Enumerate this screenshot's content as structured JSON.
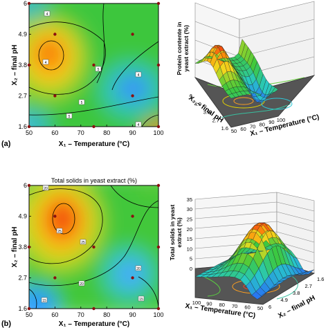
{
  "figure": {
    "panel_a": "(a)",
    "panel_b": "(b)"
  },
  "colors": {
    "low": "#1f78ff",
    "mid": "#22c030",
    "high": "#ff8a00",
    "peak": "#e81e10",
    "design_point": "#8b1010"
  },
  "chart_data": [
    {
      "type": "heatmap",
      "title": "",
      "xlabel": "X₁ – Temperature (°C)",
      "ylabel": "X₂ – final pH",
      "x_ticks": [
        "50",
        "60",
        "70",
        "80",
        "90",
        "100"
      ],
      "y_ticks": [
        "1.6",
        "2.7",
        "3.8",
        "4.9",
        "6"
      ],
      "xlim": [
        50,
        100
      ],
      "ylim": [
        1.6,
        6
      ],
      "grid": false,
      "contour_labels": [
        "4",
        "4",
        "5",
        "5",
        "5",
        "4",
        "4"
      ],
      "maximum": {
        "x": 59,
        "y": 4.3
      },
      "minimum": {
        "x": 91,
        "y": 2.9
      },
      "design_points": [
        [
          50,
          6
        ],
        [
          100,
          6
        ],
        [
          60,
          4.9
        ],
        [
          90,
          4.9
        ],
        [
          50,
          3.8
        ],
        [
          75,
          3.8
        ],
        [
          100,
          3.8
        ],
        [
          60,
          2.7
        ],
        [
          90,
          2.7
        ],
        [
          50,
          1.6
        ],
        [
          75,
          1.6
        ],
        [
          100,
          1.6
        ]
      ]
    },
    {
      "type": "surface",
      "title": "",
      "xlabel": "X₁ – Temperature (°C)",
      "ylabel": "X₂ – final pH",
      "zlabel": "Protein contente in yeast extract (%)",
      "x_ticks": [
        "50",
        "60",
        "70",
        "80",
        "90",
        "100"
      ],
      "y_ticks": [
        "1.6",
        "2.7",
        "3.8",
        "4.9",
        "6"
      ]
    },
    {
      "type": "heatmap",
      "title": "Total solids in yeast extract (%)",
      "xlabel": "X₁ – Temperature (°C)",
      "ylabel": "X₂ – final pH",
      "x_ticks": [
        "50",
        "60",
        "70",
        "80",
        "90",
        "100"
      ],
      "y_ticks": [
        "1.6",
        "2.7",
        "3.8",
        "4.9",
        "6"
      ],
      "xlim": [
        50,
        100
      ],
      "ylim": [
        1.6,
        6
      ],
      "grid": false,
      "contour_labels": [
        "20",
        "25",
        "25",
        "20",
        "20",
        "15",
        "15"
      ],
      "maximum": {
        "x": 60,
        "y": 4.9
      },
      "minimum": {
        "x": 90,
        "y": 2.9
      },
      "design_points": [
        [
          50,
          6
        ],
        [
          100,
          6
        ],
        [
          60,
          4.9
        ],
        [
          90,
          4.9
        ],
        [
          50,
          3.8
        ],
        [
          75,
          3.8
        ],
        [
          100,
          3.8
        ],
        [
          60,
          2.7
        ],
        [
          90,
          2.7
        ],
        [
          50,
          1.6
        ],
        [
          75,
          1.6
        ],
        [
          100,
          1.6
        ]
      ]
    },
    {
      "type": "surface",
      "title": "",
      "xlabel": "X₁ – Temperature (°C)",
      "ylabel": "X₂ – final pH",
      "zlabel": "Total solids in yeast extract (%)",
      "x_ticks": [
        "100",
        "90",
        "80",
        "70",
        "60",
        "50"
      ],
      "y_ticks": [
        "6",
        "4.9",
        "3.8",
        "2.7",
        "1.6"
      ],
      "z_ticks": [
        "0",
        "5",
        "10",
        "15",
        "20",
        "25",
        "30",
        "35"
      ]
    }
  ]
}
